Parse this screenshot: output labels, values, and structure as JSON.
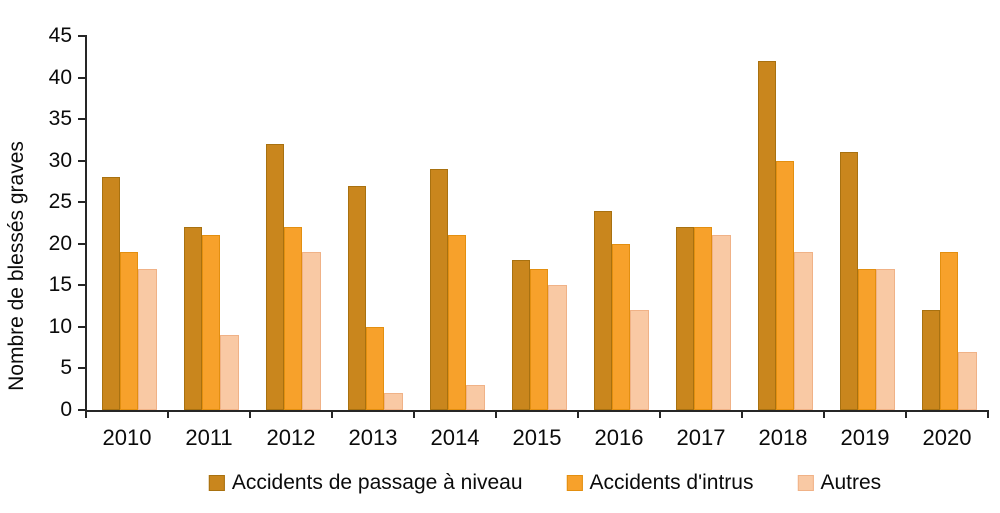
{
  "chart_data": {
    "type": "bar",
    "title": "",
    "ylabel": "Nombre de blessés graves",
    "xlabel": "",
    "ylim": [
      0,
      45
    ],
    "yticks": [
      0,
      5,
      10,
      15,
      20,
      25,
      30,
      35,
      40,
      45
    ],
    "grid": false,
    "legend_position": "bottom",
    "categories": [
      "2010",
      "2011",
      "2012",
      "2013",
      "2014",
      "2015",
      "2016",
      "2017",
      "2018",
      "2019",
      "2020"
    ],
    "series": [
      {
        "name": "Accidents de passage à niveau",
        "color": "#C9861D",
        "border_color": "#A87110",
        "values": [
          28,
          22,
          32,
          27,
          29,
          18,
          24,
          22,
          42,
          31,
          12
        ]
      },
      {
        "name": "Accidents d'intrus",
        "color": "#F7A12B",
        "border_color": "#E38F10",
        "values": [
          19,
          21,
          22,
          10,
          21,
          17,
          20,
          22,
          30,
          17,
          19
        ]
      },
      {
        "name": "Autres",
        "color": "#F9C9A4",
        "border_color": "#F0B287",
        "values": [
          17,
          9,
          19,
          2,
          3,
          15,
          12,
          21,
          19,
          17,
          7
        ]
      }
    ],
    "axis_color": "#262626",
    "text_color": "#0b0b0b",
    "background": "#ffffff"
  }
}
